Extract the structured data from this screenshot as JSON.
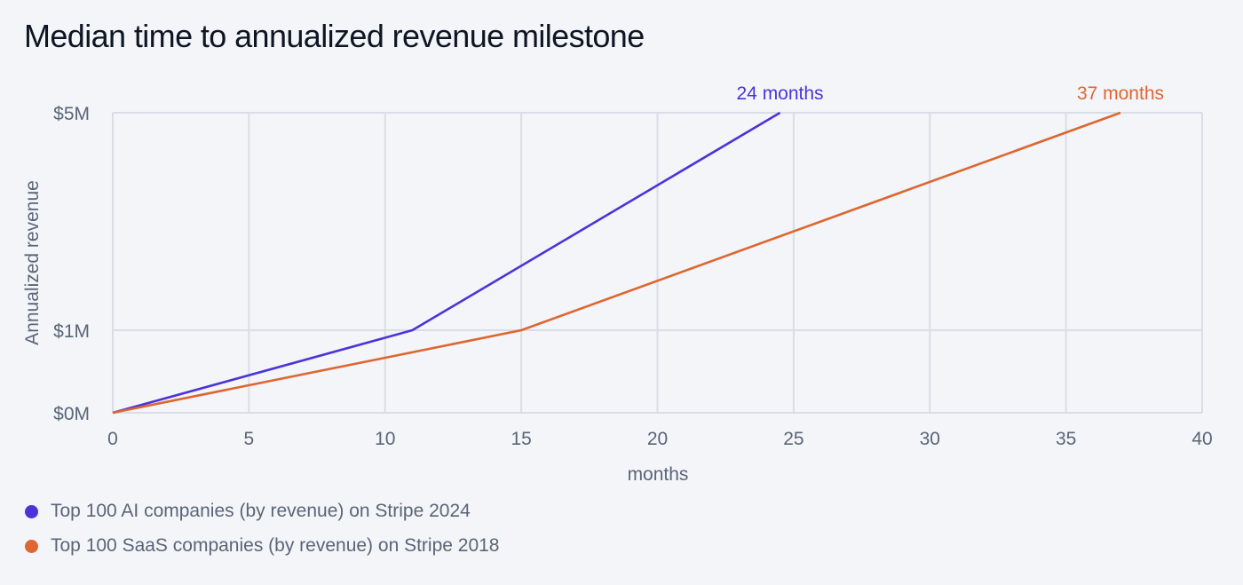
{
  "title": "Median time to annualized revenue milestone",
  "chart_data": {
    "type": "line",
    "title": "Median time to annualized revenue milestone",
    "xlabel": "months",
    "ylabel": "Annualized revenue",
    "xlim": [
      0,
      40
    ],
    "x_ticks": [
      0,
      5,
      10,
      15,
      20,
      25,
      30,
      35,
      40
    ],
    "x_tick_labels": [
      "0",
      "5",
      "10",
      "15",
      "20",
      "25",
      "30",
      "35",
      "40"
    ],
    "y_ticks": [
      0,
      1,
      5
    ],
    "y_tick_labels": [
      "$0M",
      "$1M",
      "$5M"
    ],
    "y_units": "$M annualized revenue",
    "grid": true,
    "legend_position": "bottom-left",
    "series": [
      {
        "name": "Top 100 AI companies (by revenue) on Stripe 2024",
        "color": "#4a34d9",
        "points": [
          [
            0,
            0
          ],
          [
            11,
            1
          ],
          [
            24.5,
            5
          ]
        ],
        "end_label": "24 months"
      },
      {
        "name": "Top 100 SaaS companies (by revenue) on Stripe 2018",
        "color": "#de6631",
        "points": [
          [
            0,
            0
          ],
          [
            15,
            1
          ],
          [
            37,
            5
          ]
        ],
        "end_label": "37 months"
      }
    ]
  }
}
